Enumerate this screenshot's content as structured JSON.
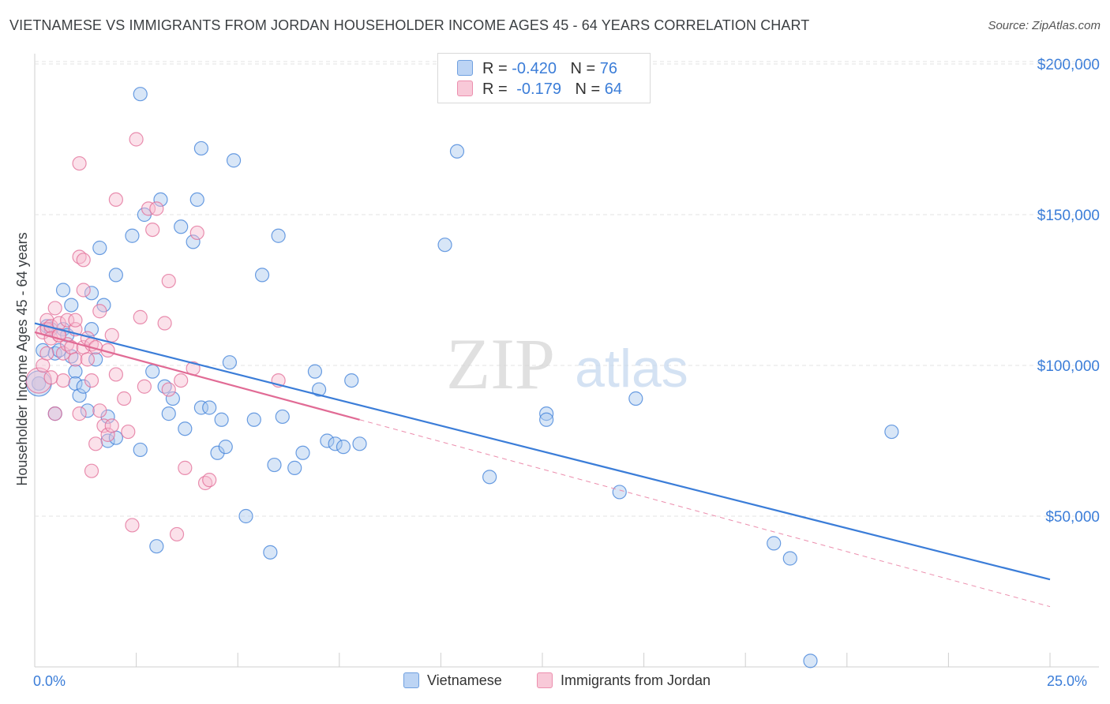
{
  "title": "VIETNAMESE VS IMMIGRANTS FROM JORDAN HOUSEHOLDER INCOME AGES 45 - 64 YEARS CORRELATION CHART",
  "source": "Source: ZipAtlas.com",
  "legend_top": {
    "rows": [
      {
        "r_label": "R =",
        "r_value": "-0.420",
        "n_label": "N =",
        "n_value": "76",
        "color": "#6fa0e0",
        "fill": "#bcd4f4"
      },
      {
        "r_label": "R =",
        "r_value": "-0.179",
        "n_label": "N =",
        "n_value": "64",
        "color": "#ec8fae",
        "fill": "#f8c9d8"
      }
    ]
  },
  "chart_data": {
    "type": "scatter",
    "title": "VIETNAMESE VS IMMIGRANTS FROM JORDAN HOUSEHOLDER INCOME AGES 45 - 64 YEARS CORRELATION CHART",
    "xlabel": "",
    "ylabel": "Householder Income Ages 45 - 64 years",
    "xlim": [
      0,
      25
    ],
    "ylim": [
      0,
      200000
    ],
    "x_tick_labels": [
      "0.0%",
      "25.0%"
    ],
    "y_tick_labels": [
      "$50,000",
      "$100,000",
      "$150,000",
      "$200,000"
    ],
    "y_ticks": [
      50000,
      100000,
      150000,
      200000
    ],
    "grid": true,
    "watermark": {
      "zip": "ZIP",
      "atlas": "atlas"
    },
    "series": [
      {
        "name": "Vietnamese",
        "color": "#3b7dd8",
        "marker_fill": "#a9c7ee",
        "points": [
          [
            0.1,
            94000
          ],
          [
            0.2,
            105000
          ],
          [
            0.3,
            113000
          ],
          [
            0.4,
            112000
          ],
          [
            0.5,
            104000
          ],
          [
            0.5,
            84000
          ],
          [
            0.6,
            105000
          ],
          [
            0.7,
            112000
          ],
          [
            0.7,
            125000
          ],
          [
            0.8,
            110000
          ],
          [
            0.9,
            103000
          ],
          [
            0.9,
            120000
          ],
          [
            1.0,
            98000
          ],
          [
            1.0,
            94000
          ],
          [
            1.4,
            124000
          ],
          [
            1.1,
            90000
          ],
          [
            1.2,
            93000
          ],
          [
            1.3,
            85000
          ],
          [
            1.4,
            112000
          ],
          [
            1.5,
            102000
          ],
          [
            1.6,
            139000
          ],
          [
            1.7,
            120000
          ],
          [
            1.8,
            75000
          ],
          [
            1.8,
            83000
          ],
          [
            2.0,
            130000
          ],
          [
            2.0,
            76000
          ],
          [
            2.4,
            143000
          ],
          [
            2.6,
            72000
          ],
          [
            2.7,
            150000
          ],
          [
            2.9,
            98000
          ],
          [
            3.0,
            40000
          ],
          [
            3.1,
            155000
          ],
          [
            3.2,
            93000
          ],
          [
            3.3,
            84000
          ],
          [
            3.4,
            89000
          ],
          [
            3.6,
            146000
          ],
          [
            3.7,
            79000
          ],
          [
            3.9,
            141000
          ],
          [
            4.0,
            155000
          ],
          [
            4.1,
            172000
          ],
          [
            4.1,
            86000
          ],
          [
            4.3,
            86000
          ],
          [
            4.5,
            71000
          ],
          [
            4.6,
            82000
          ],
          [
            4.7,
            73000
          ],
          [
            4.8,
            101000
          ],
          [
            4.9,
            168000
          ],
          [
            5.2,
            50000
          ],
          [
            5.4,
            82000
          ],
          [
            5.6,
            130000
          ],
          [
            5.8,
            38000
          ],
          [
            5.9,
            67000
          ],
          [
            6.0,
            143000
          ],
          [
            6.1,
            83000
          ],
          [
            6.4,
            66000
          ],
          [
            6.6,
            71000
          ],
          [
            6.9,
            98000
          ],
          [
            7.0,
            92000
          ],
          [
            7.2,
            75000
          ],
          [
            7.4,
            74000
          ],
          [
            7.6,
            73000
          ],
          [
            7.8,
            95000
          ],
          [
            8.0,
            74000
          ],
          [
            10.1,
            140000
          ],
          [
            10.4,
            171000
          ],
          [
            11.2,
            63000
          ],
          [
            12.6,
            84000
          ],
          [
            12.6,
            82000
          ],
          [
            14.4,
            58000
          ],
          [
            14.8,
            89000
          ],
          [
            18.2,
            41000
          ],
          [
            18.6,
            36000
          ],
          [
            19.1,
            2000
          ],
          [
            21.1,
            78000
          ],
          [
            2.6,
            190000
          ],
          [
            0.1,
            94000
          ]
        ]
      },
      {
        "name": "Immigrants from Jordan",
        "color": "#e16b95",
        "marker_fill": "#f6bcd0",
        "points": [
          [
            0.1,
            95000
          ],
          [
            0.2,
            100000
          ],
          [
            0.2,
            111000
          ],
          [
            0.3,
            115000
          ],
          [
            0.3,
            112000
          ],
          [
            0.3,
            104000
          ],
          [
            0.4,
            113000
          ],
          [
            0.4,
            109000
          ],
          [
            0.5,
            119000
          ],
          [
            0.6,
            114000
          ],
          [
            0.6,
            110000
          ],
          [
            0.7,
            95000
          ],
          [
            0.7,
            104000
          ],
          [
            0.8,
            107000
          ],
          [
            0.8,
            115000
          ],
          [
            0.9,
            106000
          ],
          [
            1.0,
            112000
          ],
          [
            1.0,
            102000
          ],
          [
            1.0,
            115000
          ],
          [
            1.1,
            167000
          ],
          [
            1.1,
            84000
          ],
          [
            1.1,
            136000
          ],
          [
            1.2,
            106000
          ],
          [
            1.2,
            135000
          ],
          [
            1.3,
            102000
          ],
          [
            1.3,
            109000
          ],
          [
            1.4,
            107000
          ],
          [
            1.4,
            65000
          ],
          [
            1.4,
            95000
          ],
          [
            1.5,
            106000
          ],
          [
            1.6,
            118000
          ],
          [
            1.5,
            74000
          ],
          [
            1.6,
            85000
          ],
          [
            1.7,
            80000
          ],
          [
            1.8,
            77000
          ],
          [
            1.8,
            105000
          ],
          [
            1.9,
            80000
          ],
          [
            1.9,
            110000
          ],
          [
            2.0,
            155000
          ],
          [
            2.0,
            97000
          ],
          [
            2.2,
            89000
          ],
          [
            2.3,
            78000
          ],
          [
            2.4,
            47000
          ],
          [
            2.5,
            175000
          ],
          [
            2.6,
            116000
          ],
          [
            2.7,
            93000
          ],
          [
            2.8,
            152000
          ],
          [
            2.9,
            145000
          ],
          [
            3.0,
            152000
          ],
          [
            3.2,
            114000
          ],
          [
            3.3,
            128000
          ],
          [
            3.3,
            92000
          ],
          [
            3.5,
            44000
          ],
          [
            3.6,
            95000
          ],
          [
            3.7,
            66000
          ],
          [
            3.9,
            99000
          ],
          [
            4.0,
            144000
          ],
          [
            4.2,
            61000
          ],
          [
            4.3,
            62000
          ],
          [
            6.0,
            95000
          ],
          [
            0.5,
            84000
          ],
          [
            0.4,
            96000
          ],
          [
            0.6,
            110000
          ],
          [
            1.2,
            125000
          ]
        ]
      }
    ],
    "trend_lines": [
      {
        "series": "Vietnamese",
        "x": [
          0,
          25
        ],
        "y": [
          114000,
          29000
        ]
      },
      {
        "series": "Immigrants from Jordan",
        "x": [
          0,
          8
        ],
        "y": [
          111000,
          82000
        ],
        "dashed_extension_to": [
          25,
          20000
        ]
      }
    ]
  },
  "legend_bottom": [
    {
      "label": "Vietnamese",
      "color": "#6fa0e0",
      "fill": "#bcd4f4"
    },
    {
      "label": "Immigrants from Jordan",
      "color": "#ec8fae",
      "fill": "#f8c9d8"
    }
  ]
}
